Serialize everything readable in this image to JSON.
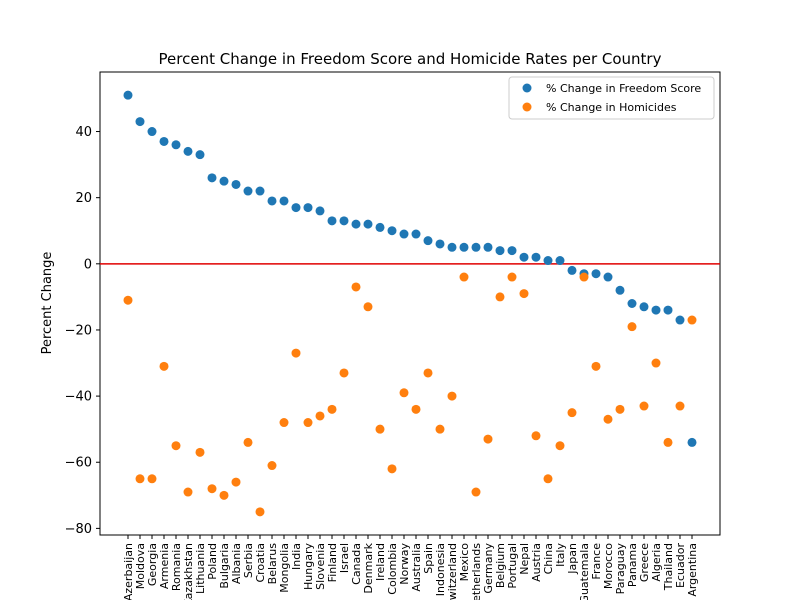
{
  "chart_data": {
    "type": "scatter",
    "title": "Percent Change in Freedom Score and Homicide Rates per Country",
    "xlabel": "",
    "ylabel": "Percent Change",
    "ylim": [
      -82,
      58
    ],
    "yticks": [
      -80,
      -60,
      -40,
      -20,
      0,
      20,
      40
    ],
    "reference_line": {
      "y": 0,
      "color": "#e00000"
    },
    "legend_position": "top-right",
    "categories": [
      "Azerbaijan",
      "Moldova",
      "Georgia",
      "Armenia",
      "Romania",
      "Kazakhstan",
      "Lithuania",
      "Poland",
      "Bulgaria",
      "Albania",
      "Serbia",
      "Croatia",
      "Belarus",
      "Mongolia",
      "India",
      "Hungary",
      "Slovenia",
      "Finland",
      "Israel",
      "Canada",
      "Denmark",
      "Ireland",
      "Colombia",
      "Norway",
      "Australia",
      "Spain",
      "Indonesia",
      "Switzerland",
      "Mexico",
      "Netherlands",
      "Germany",
      "Belgium",
      "Portugal",
      "Nepal",
      "Austria",
      "China",
      "Italy",
      "Japan",
      "Guatemala",
      "France",
      "Morocco",
      "Paraguay",
      "Panama",
      "Greece",
      "Algeria",
      "Thailand",
      "Ecuador",
      "Argentina"
    ],
    "series": [
      {
        "name": "% Change in Freedom Score",
        "color": "#1f77b4",
        "values": [
          51,
          43,
          40,
          37,
          36,
          34,
          33,
          26,
          25,
          24,
          22,
          22,
          19,
          19,
          17,
          17,
          16,
          13,
          13,
          12,
          12,
          11,
          10,
          9,
          9,
          7,
          6,
          5,
          5,
          5,
          5,
          4,
          4,
          2,
          2,
          1,
          1,
          -2,
          -3,
          -3,
          -4,
          -8,
          -12,
          -13,
          -14,
          -14,
          -17,
          -54
        ]
      },
      {
        "name": "% Change in Homicides",
        "color": "#ff7f0e",
        "values": [
          -11,
          -65,
          -65,
          -31,
          -55,
          -69,
          -57,
          -68,
          -70,
          -66,
          -54,
          -75,
          -61,
          -48,
          -27,
          -48,
          -46,
          -44,
          -33,
          -7,
          -13,
          -50,
          -62,
          -39,
          -44,
          -33,
          -50,
          -40,
          -4,
          -69,
          -53,
          -10,
          -4,
          -9,
          -52,
          -65,
          -55,
          -45,
          -4,
          -31,
          -47,
          -44,
          -19,
          -43,
          -30,
          -54,
          -43,
          -17
        ]
      }
    ]
  }
}
